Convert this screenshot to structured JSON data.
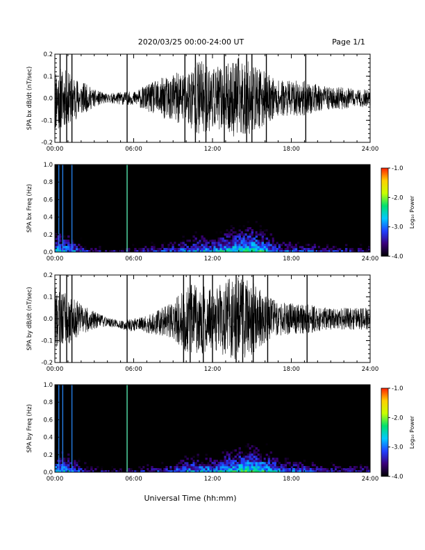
{
  "header": {
    "title": "2020/03/25  00:00-24:00 UT",
    "page": "Page 1/1"
  },
  "colors": {
    "trace": "#000000",
    "colormap": [
      "#000000",
      "#3a007a",
      "#2040ff",
      "#00c8ff",
      "#00e070",
      "#c8ff00",
      "#ffd000",
      "#ff2000"
    ]
  },
  "chart_data": [
    {
      "type": "line",
      "ylabel": "SPA bx dB/dt (nT/sec)",
      "xlim": [
        "00:00",
        "24:00"
      ],
      "ylim": [
        -0.2,
        0.2
      ],
      "xticks": [
        "00:00",
        "06:00",
        "12:00",
        "18:00",
        "24:00"
      ],
      "yticks": [
        "-0.2",
        "-0.1",
        "0.0",
        "0.1",
        "0.2"
      ],
      "ytick_values": [
        -0.2,
        -0.1,
        0.0,
        0.1,
        0.2
      ],
      "series": [
        {
          "x_hours": [
            0,
            1,
            2,
            3,
            4,
            5,
            6,
            7,
            8,
            9,
            10,
            11,
            12,
            13,
            14,
            15,
            16,
            17,
            18,
            19,
            20,
            21,
            22,
            23,
            24
          ],
          "amplitude": [
            0.16,
            0.12,
            0.08,
            0.04,
            0.02,
            0.03,
            0.03,
            0.06,
            0.09,
            0.11,
            0.13,
            0.18,
            0.14,
            0.15,
            0.19,
            0.16,
            0.12,
            0.08,
            0.08,
            0.08,
            0.06,
            0.05,
            0.05,
            0.04,
            0.04
          ],
          "spikes_hours": [
            0.4,
            0.9,
            1.3,
            5.5,
            9.9,
            10.7,
            11.5,
            12.9,
            14.6,
            15.0,
            16.1,
            19.1
          ],
          "offset": 0.0
        }
      ]
    },
    {
      "type": "heatmap",
      "ylabel": "SPA bx Freq (Hz)",
      "xlim": [
        "00:00",
        "24:00"
      ],
      "ylim": [
        0.0,
        1.0
      ],
      "xticks": [
        "00:00",
        "06:00",
        "12:00",
        "18:00",
        "24:00"
      ],
      "yticks": [
        "0.0",
        "0.2",
        "0.4",
        "0.6",
        "0.8",
        "1.0"
      ],
      "ytick_values": [
        0.0,
        0.2,
        0.4,
        0.6,
        0.8,
        1.0
      ],
      "colorbar": {
        "label": "Log₁₀ Power",
        "range": [
          -4.0,
          -1.0
        ],
        "ticks": [
          "-1.0",
          "-2.0",
          "-3.0",
          "-4.0"
        ],
        "tick_values": [
          -1.0,
          -2.0,
          -3.0,
          -4.0
        ]
      },
      "low_freq_power_by_hour": [
        -2.3,
        -2.4,
        -2.9,
        -3.2,
        -3.4,
        -3.4,
        -3.3,
        -3.1,
        -3.0,
        -2.8,
        -2.6,
        -2.4,
        -2.5,
        -2.2,
        -2.0,
        -1.9,
        -2.2,
        -2.6,
        -2.8,
        -2.9,
        -3.0,
        -3.1,
        -3.1,
        -3.2,
        -3.2
      ],
      "vertical_lines_hours": [
        0.3,
        0.6,
        1.3,
        5.5
      ]
    },
    {
      "type": "line",
      "ylabel": "SPA by dB/dt (nT/sec)",
      "xlim": [
        "00:00",
        "24:00"
      ],
      "ylim": [
        -0.2,
        0.2
      ],
      "xticks": [
        "00:00",
        "06:00",
        "12:00",
        "18:00",
        "24:00"
      ],
      "yticks": [
        "-0.2",
        "-0.1",
        "0.0",
        "0.1",
        "0.2"
      ],
      "ytick_values": [
        -0.2,
        -0.1,
        0.0,
        0.1,
        0.2
      ],
      "series": [
        {
          "x_hours": [
            0,
            1,
            2,
            3,
            4,
            5,
            6,
            7,
            8,
            9,
            10,
            11,
            12,
            13,
            14,
            15,
            16,
            17,
            18,
            19,
            20,
            21,
            22,
            23,
            24
          ],
          "amplitude": [
            0.14,
            0.12,
            0.07,
            0.04,
            0.02,
            0.02,
            0.03,
            0.04,
            0.06,
            0.09,
            0.15,
            0.17,
            0.13,
            0.18,
            0.19,
            0.17,
            0.11,
            0.08,
            0.07,
            0.07,
            0.06,
            0.05,
            0.05,
            0.05,
            0.05
          ],
          "spikes_hours": [
            0.4,
            0.9,
            1.3,
            5.5,
            9.8,
            10.3,
            11.3,
            12.0,
            13.8,
            14.3,
            15.1,
            16.2,
            19.2
          ],
          "offset": -0.03
        }
      ]
    },
    {
      "type": "heatmap",
      "ylabel": "SPA by Freq (Hz)",
      "xlim": [
        "00:00",
        "24:00"
      ],
      "ylim": [
        0.0,
        1.0
      ],
      "xticks": [
        "00:00",
        "06:00",
        "12:00",
        "18:00",
        "24:00"
      ],
      "yticks": [
        "0.0",
        "0.2",
        "0.4",
        "0.6",
        "0.8",
        "1.0"
      ],
      "ytick_values": [
        0.0,
        0.2,
        0.4,
        0.6,
        0.8,
        1.0
      ],
      "colorbar": {
        "label": "Log₁₀ Power",
        "range": [
          -4.0,
          -1.0
        ],
        "ticks": [
          "-1.0",
          "-2.0",
          "-3.0",
          "-4.0"
        ],
        "tick_values": [
          -1.0,
          -2.0,
          -3.0,
          -4.0
        ]
      },
      "low_freq_power_by_hour": [
        -2.3,
        -2.4,
        -2.9,
        -3.2,
        -3.4,
        -3.4,
        -3.3,
        -3.1,
        -3.0,
        -2.8,
        -2.5,
        -2.4,
        -2.5,
        -2.2,
        -2.0,
        -1.9,
        -2.1,
        -2.5,
        -2.7,
        -2.8,
        -3.0,
        -3.0,
        -3.1,
        -3.1,
        -3.1
      ],
      "vertical_lines_hours": [
        0.3,
        0.6,
        1.3,
        5.5
      ]
    }
  ],
  "footer": {
    "xlabel": "Universal Time (hh:mm)"
  }
}
